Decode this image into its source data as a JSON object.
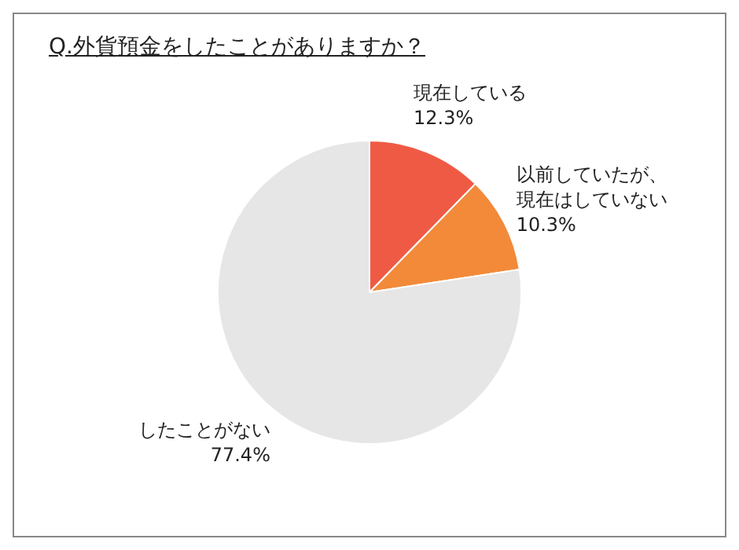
{
  "chart_data": {
    "type": "pie",
    "title": "Q.外貨預金をしたことがありますか？",
    "categories": [
      "現在している",
      "以前していたが、現在はしていない",
      "したことがない"
    ],
    "values": [
      12.3,
      10.3,
      77.4
    ],
    "value_labels": [
      "12.3%",
      "10.3%",
      "77.4%"
    ],
    "colors": [
      "#ef5a45",
      "#f28a3a",
      "#e6e6e6"
    ],
    "legend": false
  }
}
